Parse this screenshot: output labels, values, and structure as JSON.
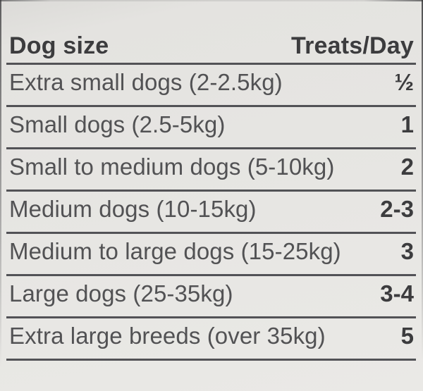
{
  "table": {
    "columns": [
      "Dog size",
      "Treats/Day"
    ],
    "rows": [
      {
        "label": "Extra small dogs (2-2.5kg)",
        "value": "½"
      },
      {
        "label": "Small dogs (2.5-5kg)",
        "value": "1"
      },
      {
        "label": "Small to medium dogs (5-10kg)",
        "value": "2"
      },
      {
        "label": "Medium dogs (10-15kg)",
        "value": "2-3"
      },
      {
        "label": "Medium to large dogs (15-25kg)",
        "value": "3"
      },
      {
        "label": "Large dogs (25-35kg)",
        "value": "3-4"
      },
      {
        "label": "Extra large breeds (over 35kg)",
        "value": "5"
      }
    ]
  },
  "colors": {
    "background": "#e6e5e2",
    "text": "#525254",
    "strong_text": "#3c3c3e",
    "rule": "#525256"
  }
}
